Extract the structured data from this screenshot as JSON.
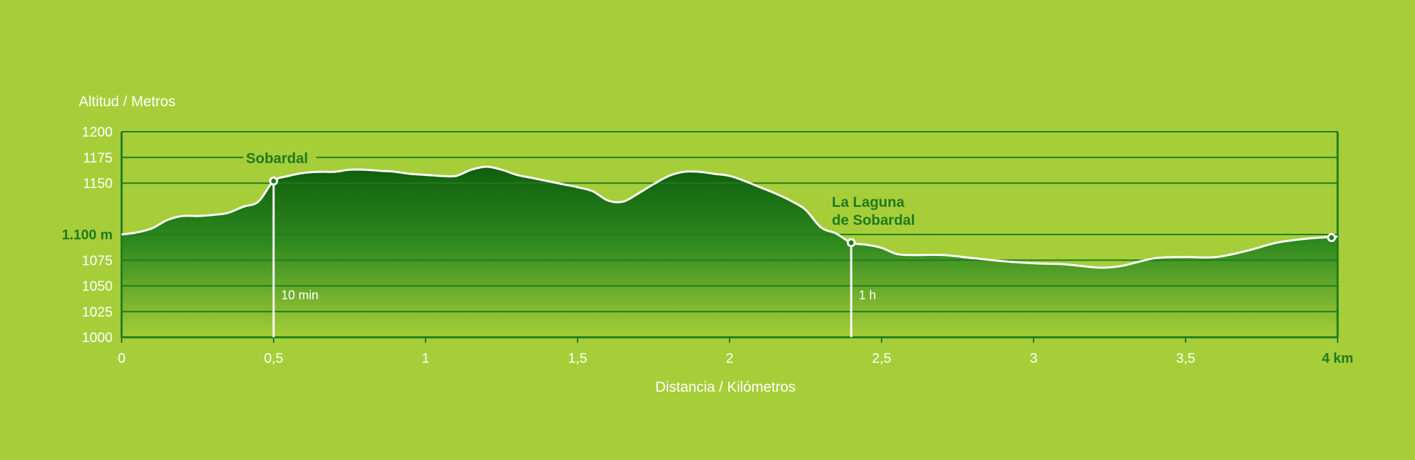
{
  "chart_data": {
    "type": "area",
    "ylabel": "Altitud / Metros",
    "xlabel": "Distancia / Kilómetros",
    "xlim": [
      0,
      4
    ],
    "ylim": [
      1000,
      1200
    ],
    "x_ticks": [
      "0",
      "0,5",
      "1",
      "1,5",
      "2",
      "2,5",
      "3",
      "3,5",
      "4 km"
    ],
    "y_ticks": [
      "1200",
      "1175",
      "1150",
      "1.100 m",
      "1075",
      "1050",
      "1025",
      "1000"
    ],
    "y_tick_values": [
      1200,
      1175,
      1150,
      1100,
      1075,
      1050,
      1025,
      1000
    ],
    "grid": true,
    "colors": {
      "fill_top": "#0e5e0e",
      "fill_bottom": "#a6ce39",
      "line": "#ffffff",
      "axis": "#1f7a1f",
      "background": "#a6ce39"
    },
    "x": [
      0,
      0.05,
      0.1,
      0.15,
      0.2,
      0.25,
      0.3,
      0.35,
      0.4,
      0.45,
      0.5,
      0.55,
      0.6,
      0.65,
      0.7,
      0.75,
      0.8,
      0.85,
      0.9,
      0.95,
      1.0,
      1.05,
      1.1,
      1.15,
      1.2,
      1.25,
      1.3,
      1.35,
      1.4,
      1.45,
      1.5,
      1.55,
      1.6,
      1.65,
      1.7,
      1.75,
      1.8,
      1.85,
      1.9,
      1.95,
      2.0,
      2.05,
      2.1,
      2.15,
      2.2,
      2.25,
      2.3,
      2.35,
      2.4,
      2.45,
      2.5,
      2.55,
      2.6,
      2.7,
      2.8,
      2.9,
      3.0,
      3.1,
      3.2,
      3.25,
      3.3,
      3.4,
      3.5,
      3.6,
      3.7,
      3.8,
      3.9,
      4.0
    ],
    "y": [
      1100,
      1102,
      1106,
      1114,
      1118,
      1118,
      1119,
      1121,
      1127,
      1132,
      1152,
      1157,
      1160,
      1161,
      1161,
      1163,
      1163,
      1162,
      1161,
      1159,
      1158,
      1157,
      1157,
      1163,
      1166,
      1163,
      1158,
      1155,
      1152,
      1149,
      1146,
      1142,
      1133,
      1132,
      1140,
      1149,
      1157,
      1161,
      1161,
      1159,
      1157,
      1152,
      1146,
      1140,
      1133,
      1124,
      1107,
      1101,
      1092,
      1090,
      1087,
      1081,
      1080,
      1080,
      1077,
      1074,
      1072,
      1071,
      1068,
      1068,
      1070,
      1077,
      1078,
      1078,
      1084,
      1092,
      1096,
      1098
    ],
    "waypoints": [
      {
        "name": "Sobardal",
        "x": 0.5,
        "y": 1152,
        "time": "10 min"
      },
      {
        "name": [
          "La Laguna",
          "de Sobardal"
        ],
        "x": 2.4,
        "y": 1092,
        "time": "1 h"
      },
      {
        "name": "",
        "x": 3.98,
        "y": 1097,
        "time": ""
      }
    ]
  }
}
